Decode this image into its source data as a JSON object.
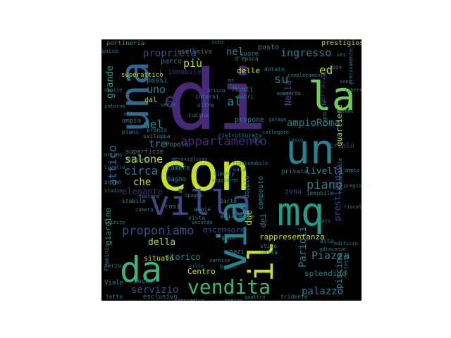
{
  "wordcloud": {
    "background": "#000000",
    "palette": {
      "purple": "#482878",
      "indigo": "#3e4989",
      "blue": "#31688e",
      "teal": "#26828e",
      "sea": "#1f9e89",
      "green": "#35b779",
      "lime": "#6ece58",
      "yellow": "#b5de2b",
      "bright": "#c8e020"
    },
    "words": [
      {
        "text": "di",
        "color": "purple"
      },
      {
        "text": "con",
        "color": "bright"
      },
      {
        "text": "una",
        "color": "blue"
      },
      {
        "text": "la",
        "color": "lime"
      },
      {
        "text": "un",
        "color": "teal"
      },
      {
        "text": "mq",
        "color": "sea"
      },
      {
        "text": "villa",
        "color": "indigo"
      },
      {
        "text": "via",
        "color": "teal"
      },
      {
        "text": "da",
        "color": "green"
      },
      {
        "text": "vendita",
        "color": "green"
      },
      {
        "text": "appartamento",
        "color": "purple"
      },
      {
        "text": "proponiamo",
        "color": "indigo"
      },
      {
        "text": "il",
        "color": "bright"
      },
      {
        "text": "e",
        "color": "purple"
      },
      {
        "text": "ingresso",
        "color": "teal"
      },
      {
        "text": "nel",
        "color": "teal"
      },
      {
        "text": "ed",
        "color": "yellow"
      },
      {
        "text": "su",
        "color": "teal"
      },
      {
        "text": "al",
        "color": "teal"
      },
      {
        "text": "del",
        "color": "teal"
      },
      {
        "text": "più",
        "color": "yellow"
      },
      {
        "text": "uno",
        "color": "teal"
      },
      {
        "text": "piano",
        "color": "teal"
      },
      {
        "text": "circa",
        "color": "teal"
      },
      {
        "text": "salone",
        "color": "bright"
      },
      {
        "text": "che",
        "color": "bright"
      },
      {
        "text": "tre",
        "color": "teal"
      },
      {
        "text": "ampioRoma",
        "color": "teal"
      },
      {
        "text": "proprietà",
        "color": "indigo"
      },
      {
        "text": "Parioli",
        "color": "teal"
      },
      {
        "text": "Piazza",
        "color": "teal"
      },
      {
        "text": "palazzo",
        "color": "teal"
      },
      {
        "text": "servizio",
        "color": "indigo"
      },
      {
        "text": "rappresentanza",
        "color": "bright"
      },
      {
        "text": "livelli",
        "color": "teal"
      },
      {
        "text": "prestigioso",
        "color": "indigo"
      },
      {
        "text": "della",
        "color": "yellow"
      },
      {
        "text": "due",
        "color": "yellow"
      },
      {
        "text": "dei",
        "color": "teal"
      },
      {
        "text": "Nella",
        "color": "indigo"
      },
      {
        "text": "attico",
        "color": "blue"
      },
      {
        "text": "grande",
        "color": "sea"
      },
      {
        "text": "elegante",
        "color": "purple"
      },
      {
        "text": "storico",
        "color": "teal"
      },
      {
        "text": "piscina",
        "color": "teal"
      },
      {
        "text": "Centro",
        "color": "bright"
      },
      {
        "text": "splendido",
        "color": "teal"
      },
      {
        "text": "situato",
        "color": "bright"
      },
      {
        "text": "ascensore",
        "color": "indigo"
      },
      {
        "text": "delle",
        "color": "bright"
      },
      {
        "text": "composto",
        "color": "teal"
      },
      {
        "text": "terrazza",
        "color": "purple"
      },
      {
        "text": "prestigiosa",
        "color": "yellow"
      },
      {
        "text": "esclusiva",
        "color": "teal"
      },
      {
        "text": "posto",
        "color": "teal"
      },
      {
        "text": "portineria",
        "color": "sea"
      },
      {
        "text": "L'immobile",
        "color": "purple"
      },
      {
        "text": "parco",
        "color": "teal"
      },
      {
        "text": "superattico",
        "color": "yellow"
      },
      {
        "text": "passi",
        "color": "teal"
      },
      {
        "text": "dal",
        "color": "yellow"
      },
      {
        "text": "Monti",
        "color": "teal"
      },
      {
        "text": "metri",
        "color": "teal"
      },
      {
        "text": "interni",
        "color": "teal"
      },
      {
        "text": "oltre",
        "color": "teal"
      },
      {
        "text": "propone",
        "color": "teal"
      },
      {
        "text": "quartiere",
        "color": "yellow"
      },
      {
        "text": "giardino",
        "color": "sea"
      },
      {
        "text": "triplo",
        "color": "indigo"
      },
      {
        "text": "adiacente",
        "color": "teal"
      },
      {
        "text": "zona",
        "color": "indigo"
      },
      {
        "text": "privata",
        "color": "teal"
      },
      {
        "text": "doppio",
        "color": "teal"
      },
      {
        "text": "bagno",
        "color": "teal"
      },
      {
        "text": "camere",
        "color": "teal"
      },
      {
        "text": "superficie",
        "color": "teal"
      },
      {
        "text": "pranzo",
        "color": "teal"
      },
      {
        "text": "Popolo",
        "color": "teal"
      },
      {
        "text": "ampia",
        "color": "teal"
      },
      {
        "text": "piani",
        "color": "teal"
      },
      {
        "text": "sviluppa",
        "color": "teal"
      },
      {
        "text": "vista",
        "color": "teal"
      },
      {
        "text": "ampie",
        "color": "teal"
      },
      {
        "text": "così",
        "color": "teal"
      },
      {
        "text": "parte",
        "color": "teal"
      },
      {
        "text": "stile",
        "color": "teal"
      },
      {
        "text": "unità",
        "color": "teal"
      },
      {
        "text": "Flaminio",
        "color": "teal"
      },
      {
        "text": "Viale",
        "color": "teal"
      },
      {
        "text": "pochi",
        "color": "teal"
      },
      {
        "text": "letto",
        "color": "teal"
      },
      {
        "text": "esclusivo",
        "color": "teal"
      },
      {
        "text": "bagni",
        "color": "teal"
      },
      {
        "text": "spazi",
        "color": "teal"
      },
      {
        "text": "godo",
        "color": "teal"
      },
      {
        "text": "stabile",
        "color": "teal"
      },
      {
        "text": "primo",
        "color": "teal"
      },
      {
        "text": "d'epoca",
        "color": "teal"
      },
      {
        "text": "cucina",
        "color": "teal"
      },
      {
        "text": "dotato",
        "color": "teal"
      },
      {
        "text": "mansarda",
        "color": "teal"
      },
      {
        "text": "terzo",
        "color": "teal"
      },
      {
        "text": "immobile",
        "color": "teal"
      },
      {
        "text": "signorile",
        "color": "teal"
      },
      {
        "text": "residenziale",
        "color": "teal"
      },
      {
        "text": "box",
        "color": "teal"
      },
      {
        "text": "alta",
        "color": "teal"
      },
      {
        "text": "tridente",
        "color": "teal"
      },
      {
        "text": "attico",
        "color": "teal"
      },
      {
        "text": "unico",
        "color": "teal"
      },
      {
        "text": "mt",
        "color": "teal"
      },
      {
        "text": "cuore",
        "color": "teal"
      },
      {
        "text": "verde",
        "color": "teal"
      },
      {
        "text": "Borghese",
        "color": "teal"
      },
      {
        "text": "sala",
        "color": "teal"
      },
      {
        "text": "frazionabile",
        "color": "teal"
      },
      {
        "text": "adiacenze",
        "color": "teal"
      },
      {
        "text": "ristrutturato",
        "color": "teal"
      },
      {
        "text": "cornice",
        "color": "teal"
      },
      {
        "text": "tre",
        "color": "teal"
      },
      {
        "text": "sei",
        "color": "teal"
      },
      {
        "text": "sono",
        "color": "teal"
      },
      {
        "text": "vani",
        "color": "teal"
      },
      {
        "text": "ampio",
        "color": "teal"
      },
      {
        "text": "libero",
        "color": "teal"
      },
      {
        "text": "garage",
        "color": "teal"
      },
      {
        "text": "ville",
        "color": "teal"
      },
      {
        "text": "panoramico",
        "color": "teal"
      },
      {
        "text": "prezzo",
        "color": "teal"
      },
      {
        "text": "quattro",
        "color": "teal"
      },
      {
        "text": "livello",
        "color": "teal"
      },
      {
        "text": "studio",
        "color": "teal"
      },
      {
        "text": "Trieste",
        "color": "teal"
      },
      {
        "text": "nobile",
        "color": "teal"
      },
      {
        "text": "interno",
        "color": "teal"
      },
      {
        "text": "affaccio",
        "color": "teal"
      },
      {
        "text": "ottimo",
        "color": "teal"
      },
      {
        "text": "camera",
        "color": "teal"
      },
      {
        "text": "completamente",
        "color": "teal"
      },
      {
        "text": "sito",
        "color": "teal"
      },
      {
        "text": "toscano",
        "color": "teal"
      },
      {
        "text": "liberty",
        "color": "teal"
      },
      {
        "text": "secondo",
        "color": "teal"
      },
      {
        "text": "soggiorno",
        "color": "teal"
      },
      {
        "text": "meraviglioso",
        "color": "teal"
      },
      {
        "text": "Prati",
        "color": "teal"
      },
      {
        "text": "Spagna",
        "color": "teal"
      },
      {
        "text": "lusso",
        "color": "teal"
      },
      {
        "text": "precisamente",
        "color": "teal"
      },
      {
        "text": "riscaldamento",
        "color": "teal"
      },
      {
        "text": "collegato",
        "color": "teal"
      },
      {
        "text": "pregio",
        "color": "teal"
      },
      {
        "text": "edificio",
        "color": "teal"
      },
      {
        "text": "contesto",
        "color": "teal"
      }
    ]
  }
}
